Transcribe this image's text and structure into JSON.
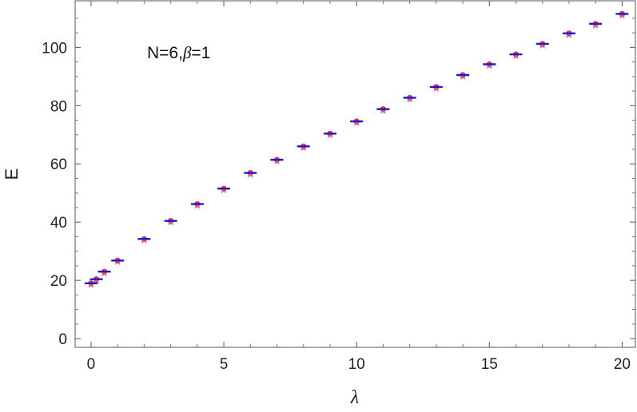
{
  "chart_data": {
    "type": "scatter",
    "title": "",
    "xlabel": "λ",
    "ylabel": "E",
    "xlim": [
      -0.6,
      20.5
    ],
    "ylim": [
      -3,
      116
    ],
    "xticks": [
      0,
      5,
      10,
      15,
      20
    ],
    "yticks": [
      0,
      20,
      40,
      60,
      80,
      100
    ],
    "grid": false,
    "legend": "none",
    "annotation": {
      "prefix": "N=6,",
      "beta_symbol": "β",
      "suffix": "=1"
    },
    "series": [
      {
        "marker": "horizontal-dash",
        "color": "#1a1acc",
        "x": [
          0,
          0.2,
          0.5,
          1,
          2,
          3,
          4,
          5,
          6,
          7,
          8,
          9,
          10,
          11,
          12,
          13,
          14,
          15,
          16,
          17,
          18,
          19,
          20
        ],
        "y": [
          19.0,
          20.4,
          23.0,
          26.8,
          34.2,
          40.4,
          46.2,
          51.5,
          56.9,
          61.4,
          66.0,
          70.4,
          74.6,
          78.8,
          82.7,
          86.4,
          90.5,
          94.2,
          97.6,
          101.2,
          104.8,
          108.1,
          111.5
        ]
      },
      {
        "marker": "circle",
        "color": "#d6205a",
        "x": [
          0,
          0.2,
          0.5,
          1,
          2,
          3,
          4,
          5,
          6,
          7,
          8,
          9,
          10,
          11,
          12,
          13,
          14,
          15,
          16,
          17,
          18,
          19,
          20
        ],
        "y": [
          19.0,
          20.4,
          23.0,
          26.8,
          34.2,
          40.4,
          46.2,
          51.5,
          56.9,
          61.4,
          66.0,
          70.4,
          74.6,
          78.8,
          82.7,
          86.4,
          90.5,
          94.2,
          97.6,
          101.2,
          104.8,
          108.1,
          111.5
        ]
      },
      {
        "marker": "star",
        "color": "#e8556d",
        "x": [
          0,
          0.2,
          0.5,
          1,
          2,
          3,
          4,
          5,
          6,
          7,
          8,
          9,
          10,
          11,
          12,
          13,
          14,
          15,
          16,
          17,
          18,
          19,
          20
        ],
        "y": [
          18.6,
          20.0,
          22.6,
          26.5,
          33.9,
          40.1,
          45.8,
          51.1,
          56.5,
          61.0,
          65.6,
          70.0,
          74.2,
          78.4,
          82.3,
          86.0,
          90.1,
          93.8,
          97.2,
          100.8,
          104.4,
          107.7,
          111.1
        ]
      }
    ]
  }
}
